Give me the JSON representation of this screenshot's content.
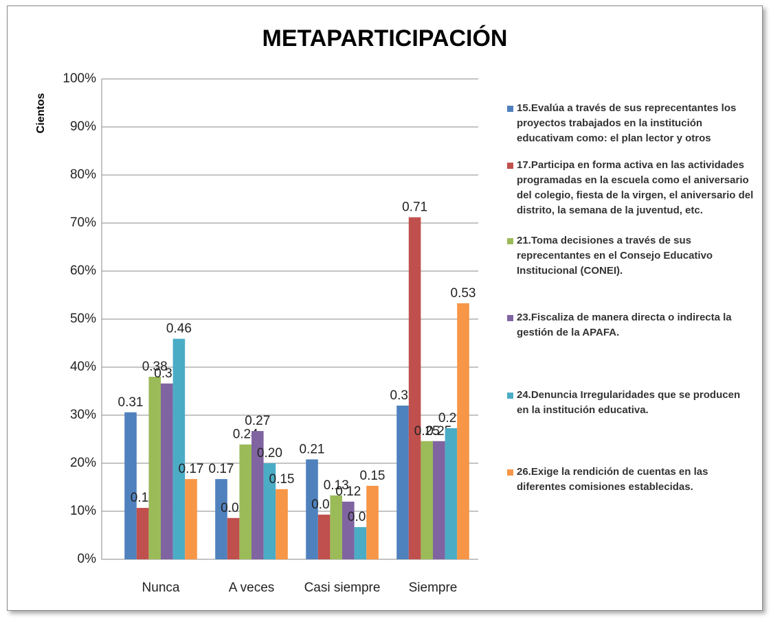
{
  "chart_data": {
    "type": "bar",
    "title": "METAPARTICIPACIÓN",
    "y_label": "Cientos",
    "categories": [
      "Nunca",
      "A veces",
      "Casi siempre",
      "Siempre"
    ],
    "series": [
      {
        "name": "15.Evalúa a través de sus reprecentantes los proyectos trabajados en la institución educativam como: el plan lector y otros",
        "color": "#4f81bd",
        "values": [
          30.6,
          16.7,
          20.8,
          32
        ],
        "value_labels": [
          "0.31",
          "0.17",
          "0.21",
          "0.32"
        ]
      },
      {
        "name": "17.Participa en forma activa en las actividades programadas en la escuela como el aniversario del colegio, fiesta de la virgen, el aniversario del distrito, la semana de la juventud, etc.",
        "color": "#c0504d",
        "values": [
          10.7,
          8.6,
          9.3,
          71.2
        ],
        "value_labels": [
          "0.11",
          "0.09",
          "0.09",
          "0.71"
        ]
      },
      {
        "name": "21.Toma decisiones a través de sus reprecentantes en el Consejo Educativo Institucional (CONEI).",
        "color": "#9bbb59",
        "values": [
          38,
          23.9,
          13.3,
          24.6
        ],
        "value_labels": [
          "0.38",
          "0.24",
          "0.13",
          "0.25"
        ]
      },
      {
        "name": "23.Fiscaliza de manera directa o indirecta la gestión de  la APAFA.",
        "color": "#8064a2",
        "values": [
          36.6,
          26.7,
          12,
          24.6
        ],
        "value_labels": [
          "0.37",
          "0.27",
          "0.12",
          "0.25"
        ]
      },
      {
        "name": "24.Denuncia Irregularidades que se producen en la institución  educativa.",
        "color": "#4bacc6",
        "values": [
          45.9,
          20,
          6.7,
          27.3
        ],
        "value_labels": [
          "0.46",
          "0.20",
          "0.07",
          "0.27"
        ]
      },
      {
        "name": "26.Exige la rendición de cuentas en las diferentes comisiones establecidas.",
        "color": "#f79646",
        "values": [
          16.7,
          14.6,
          15.3,
          53.3
        ],
        "value_labels": [
          "0.17",
          "0.15",
          "0.15",
          "0.53"
        ]
      }
    ],
    "ylim": [
      0,
      100
    ],
    "yticks": [
      {
        "value": 0,
        "label": "0%"
      },
      {
        "value": 10,
        "label": "10%"
      },
      {
        "value": 20,
        "label": "20%"
      },
      {
        "value": 30,
        "label": "30%"
      },
      {
        "value": 40,
        "label": "40%"
      },
      {
        "value": 50,
        "label": "50%"
      },
      {
        "value": 60,
        "label": "60%"
      },
      {
        "value": 70,
        "label": "70%"
      },
      {
        "value": 80,
        "label": "80%"
      },
      {
        "value": 90,
        "label": "90%"
      },
      {
        "value": 100,
        "label": "100%"
      }
    ],
    "grid": true,
    "legend": "right"
  }
}
